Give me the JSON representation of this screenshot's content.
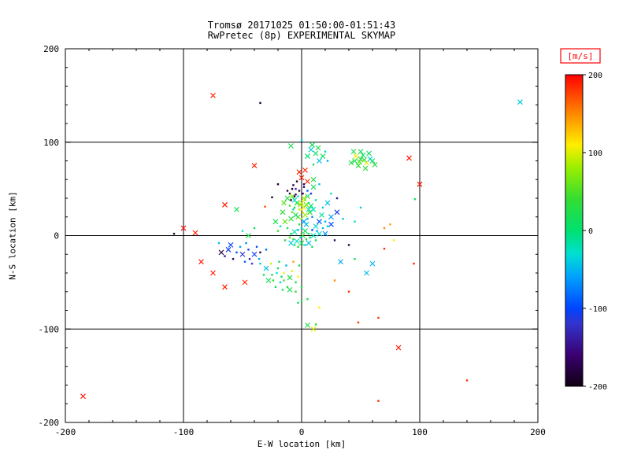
{
  "page": {
    "background": "#ffffff",
    "text_color": "#000000"
  },
  "chart_data": {
    "type": "scatter",
    "title": "Tromsø 20171025 01:50:00-01:51:43",
    "subtitle": "RwPretec (8p) EXPERIMENTAL SKYMAP",
    "xlabel": "E-W location [km]",
    "ylabel": "N-S location [km]",
    "xlim": [
      -200,
      200
    ],
    "ylim": [
      -200,
      200
    ],
    "x_ticks": [
      -200,
      -100,
      0,
      100,
      200
    ],
    "y_ticks": [
      -200,
      -100,
      0,
      100,
      200
    ],
    "grid_lines": [
      -100,
      0,
      100
    ],
    "grid_on": true,
    "legend_position": "right-colorbar",
    "colorbar": {
      "label": "[m/s]",
      "label_color": "#ff0000",
      "min": -200,
      "max": 200,
      "ticks": [
        200,
        100,
        0,
        -100,
        -200
      ],
      "stops": [
        [
          -200,
          "#100010"
        ],
        [
          -160,
          "#3a0070"
        ],
        [
          -120,
          "#3333cc"
        ],
        [
          -100,
          "#0044ff"
        ],
        [
          -60,
          "#00a0ff"
        ],
        [
          -30,
          "#00e0d0"
        ],
        [
          0,
          "#00e070"
        ],
        [
          40,
          "#33dd33"
        ],
        [
          80,
          "#99ee00"
        ],
        [
          110,
          "#ffee00"
        ],
        [
          150,
          "#ff8800"
        ],
        [
          200,
          "#ff0000"
        ]
      ]
    },
    "marker_types": {
      "0": "dot",
      "1": "x"
    },
    "points_format": [
      "x_km",
      "y_km",
      "velocity_m_s",
      "marker"
    ],
    "points": [
      [
        -75,
        150,
        190,
        1
      ],
      [
        -35,
        142,
        -185,
        0
      ],
      [
        185,
        143,
        -40,
        1
      ],
      [
        -185,
        -172,
        192,
        1
      ],
      [
        65,
        -177,
        188,
        0
      ],
      [
        140,
        -155,
        185,
        0
      ],
      [
        82,
        -120,
        190,
        1
      ],
      [
        65,
        -88,
        185,
        0
      ],
      [
        48,
        -93,
        180,
        0
      ],
      [
        91,
        83,
        190,
        1
      ],
      [
        100,
        55,
        190,
        1
      ],
      [
        -40,
        75,
        188,
        1
      ],
      [
        -100,
        8,
        195,
        1
      ],
      [
        -90,
        3,
        185,
        1
      ],
      [
        -108,
        2,
        -190,
        0
      ],
      [
        -65,
        33,
        190,
        1
      ],
      [
        -85,
        -28,
        190,
        1
      ],
      [
        -75,
        -40,
        190,
        1
      ],
      [
        -65,
        -55,
        188,
        1
      ],
      [
        -48,
        -50,
        185,
        1
      ],
      [
        95,
        -30,
        185,
        0
      ],
      [
        70,
        -14,
        182,
        0
      ],
      [
        -55,
        28,
        20,
        1
      ],
      [
        -45,
        0,
        22,
        1
      ],
      [
        -50,
        5,
        -30,
        0
      ],
      [
        -40,
        8,
        15,
        0
      ],
      [
        -70,
        -8,
        -45,
        0
      ],
      [
        -31,
        31,
        170,
        0
      ],
      [
        -25,
        41,
        -185,
        0
      ],
      [
        -20,
        55,
        -190,
        0
      ],
      [
        -62,
        -15,
        -110,
        1
      ],
      [
        -55,
        -18,
        -95,
        0
      ],
      [
        -50,
        -20,
        -120,
        1
      ],
      [
        -45,
        -15,
        -100,
        0
      ],
      [
        -58,
        -25,
        -170,
        0
      ],
      [
        -48,
        -28,
        -90,
        0
      ],
      [
        -40,
        -20,
        -105,
        1
      ],
      [
        -35,
        -18,
        -175,
        0
      ],
      [
        -30,
        -15,
        -85,
        0
      ],
      [
        -68,
        -18,
        -180,
        1
      ],
      [
        -52,
        -12,
        -60,
        0
      ],
      [
        -44,
        -25,
        -130,
        0
      ],
      [
        -38,
        -12,
        -95,
        0
      ],
      [
        -65,
        -22,
        -150,
        0
      ],
      [
        -60,
        -10,
        -100,
        1
      ],
      [
        -47,
        -8,
        -70,
        0
      ],
      [
        -42,
        -30,
        -115,
        0
      ],
      [
        -36,
        -25,
        -55,
        0
      ],
      [
        -20,
        -35,
        20,
        0
      ],
      [
        -15,
        -40,
        105,
        0
      ],
      [
        -10,
        -45,
        25,
        1
      ],
      [
        -5,
        -50,
        15,
        0
      ],
      [
        -18,
        -50,
        -40,
        0
      ],
      [
        -12,
        -55,
        30,
        0
      ],
      [
        -8,
        -38,
        100,
        0
      ],
      [
        -25,
        -42,
        20,
        0
      ],
      [
        -3,
        -44,
        110,
        0
      ],
      [
        0,
        -55,
        25,
        0
      ],
      [
        -30,
        -35,
        -45,
        1
      ],
      [
        -22,
        -55,
        18,
        0
      ],
      [
        -16,
        -58,
        28,
        0
      ],
      [
        -28,
        -48,
        22,
        1
      ],
      [
        -35,
        -30,
        -35,
        0
      ],
      [
        -32,
        -42,
        15,
        0
      ],
      [
        -26,
        -30,
        95,
        0
      ],
      [
        -19,
        -28,
        12,
        0
      ],
      [
        -13,
        -32,
        -50,
        0
      ],
      [
        -7,
        -28,
        140,
        0
      ],
      [
        -2,
        -32,
        20,
        0
      ],
      [
        -24,
        -48,
        35,
        0
      ],
      [
        -10,
        -58,
        20,
        1
      ],
      [
        -5,
        -60,
        30,
        0
      ],
      [
        -15,
        -48,
        50,
        0
      ],
      [
        -21,
        -40,
        -30,
        0
      ],
      [
        -17,
        -44,
        15,
        0
      ],
      [
        0,
        -70,
        20,
        0
      ],
      [
        5,
        -68,
        30,
        0
      ],
      [
        -3,
        -72,
        15,
        0
      ],
      [
        15,
        -77,
        110,
        0
      ],
      [
        10,
        -100,
        100,
        1
      ],
      [
        12,
        -95,
        30,
        0
      ],
      [
        5,
        -96,
        25,
        1
      ],
      [
        40,
        -60,
        180,
        0
      ],
      [
        28,
        -48,
        150,
        0
      ],
      [
        33,
        -28,
        -55,
        1
      ],
      [
        45,
        -25,
        15,
        0
      ],
      [
        55,
        -40,
        -45,
        1
      ],
      [
        60,
        -30,
        -50,
        1
      ],
      [
        96,
        39,
        10,
        0
      ],
      [
        75,
        12,
        140,
        0
      ],
      [
        78,
        -5,
        110,
        0
      ],
      [
        70,
        8,
        150,
        0
      ],
      [
        30,
        25,
        -110,
        1
      ],
      [
        25,
        12,
        -100,
        1
      ],
      [
        35,
        18,
        -40,
        0
      ],
      [
        28,
        -5,
        -170,
        0
      ],
      [
        40,
        -10,
        -180,
        0
      ],
      [
        25,
        45,
        -30,
        0
      ],
      [
        30,
        40,
        -150,
        0
      ],
      [
        22,
        35,
        -45,
        1
      ],
      [
        45,
        15,
        -25,
        0
      ],
      [
        50,
        30,
        -40,
        0
      ],
      [
        12,
        88,
        15,
        1
      ],
      [
        15,
        80,
        -45,
        1
      ],
      [
        10,
        76,
        20,
        0
      ],
      [
        18,
        85,
        10,
        1
      ],
      [
        8,
        92,
        -40,
        1
      ],
      [
        20,
        90,
        -30,
        0
      ],
      [
        5,
        85,
        0,
        1
      ],
      [
        14,
        94,
        25,
        1
      ],
      [
        22,
        80,
        -55,
        0
      ],
      [
        9,
        97,
        15,
        1
      ],
      [
        -9,
        96,
        20,
        1
      ],
      [
        0,
        102,
        -35,
        0
      ],
      [
        45,
        80,
        20,
        1
      ],
      [
        50,
        82,
        10,
        1
      ],
      [
        55,
        78,
        105,
        1
      ],
      [
        48,
        75,
        30,
        1
      ],
      [
        52,
        86,
        15,
        1
      ],
      [
        58,
        82,
        -40,
        1
      ],
      [
        42,
        78,
        25,
        1
      ],
      [
        50,
        90,
        18,
        1
      ],
      [
        60,
        80,
        12,
        1
      ],
      [
        46,
        85,
        108,
        1
      ],
      [
        54,
        72,
        35,
        1
      ],
      [
        44,
        90,
        22,
        1
      ],
      [
        57,
        88,
        8,
        1
      ],
      [
        62,
        76,
        28,
        1
      ],
      [
        49,
        79,
        60,
        1
      ],
      [
        53,
        81,
        45,
        1
      ],
      [
        0,
        62,
        190,
        1
      ],
      [
        3,
        70,
        185,
        1
      ],
      [
        -2,
        68,
        188,
        1
      ],
      [
        5,
        58,
        182,
        1
      ],
      [
        -4,
        58,
        -185,
        0
      ],
      [
        -7,
        54,
        -175,
        0
      ],
      [
        2,
        52,
        -160,
        0
      ],
      [
        -2,
        48,
        -180,
        0
      ],
      [
        1,
        45,
        -170,
        0
      ],
      [
        -5,
        44,
        -150,
        0
      ],
      [
        -8,
        50,
        -190,
        0
      ],
      [
        -10,
        45,
        -185,
        0
      ],
      [
        -6,
        42,
        -180,
        0
      ],
      [
        -12,
        48,
        -175,
        0
      ],
      [
        -9,
        38,
        -190,
        0
      ],
      [
        10,
        60,
        25,
        1
      ],
      [
        15,
        55,
        -40,
        0
      ],
      [
        0,
        35,
        100,
        1
      ],
      [
        2,
        30,
        110,
        1
      ],
      [
        -2,
        28,
        90,
        0
      ],
      [
        4,
        33,
        60,
        1
      ],
      [
        -4,
        35,
        30,
        1
      ],
      [
        6,
        28,
        -30,
        1
      ],
      [
        -6,
        30,
        20,
        0
      ],
      [
        1,
        25,
        105,
        0
      ],
      [
        3,
        22,
        80,
        1
      ],
      [
        -3,
        20,
        50,
        1
      ],
      [
        5,
        18,
        -45,
        0
      ],
      [
        -5,
        22,
        15,
        1
      ],
      [
        0,
        18,
        95,
        0
      ],
      [
        2,
        15,
        -60,
        1
      ],
      [
        -2,
        12,
        25,
        0
      ],
      [
        7,
        25,
        40,
        1
      ],
      [
        -7,
        28,
        -35,
        0
      ],
      [
        8,
        32,
        10,
        1
      ],
      [
        -8,
        25,
        65,
        0
      ],
      [
        4,
        12,
        -50,
        1
      ],
      [
        0,
        28,
        120,
        0
      ],
      [
        -1,
        33,
        75,
        1
      ],
      [
        6,
        35,
        20,
        0
      ],
      [
        -6,
        38,
        -25,
        1
      ],
      [
        3,
        38,
        55,
        0
      ],
      [
        9,
        20,
        -70,
        0
      ],
      [
        -9,
        18,
        30,
        1
      ],
      [
        10,
        28,
        -20,
        1
      ],
      [
        -10,
        32,
        45,
        0
      ],
      [
        2,
        40,
        85,
        1
      ],
      [
        -3,
        42,
        -30,
        0
      ],
      [
        5,
        42,
        25,
        1
      ],
      [
        0,
        8,
        -40,
        0
      ],
      [
        3,
        5,
        15,
        1
      ],
      [
        -3,
        6,
        -55,
        0
      ],
      [
        6,
        2,
        30,
        0
      ],
      [
        -6,
        4,
        -20,
        1
      ],
      [
        9,
        6,
        -100,
        0
      ],
      [
        -9,
        2,
        10,
        0
      ],
      [
        12,
        10,
        -35,
        1
      ],
      [
        -12,
        8,
        20,
        0
      ],
      [
        1,
        0,
        40,
        1
      ],
      [
        -1,
        -2,
        -45,
        0
      ],
      [
        4,
        -4,
        25,
        0
      ],
      [
        -4,
        -6,
        -30,
        1
      ],
      [
        7,
        -2,
        15,
        0
      ],
      [
        -7,
        -4,
        35,
        0
      ],
      [
        10,
        0,
        -25,
        1
      ],
      [
        -10,
        -2,
        50,
        0
      ],
      [
        13,
        5,
        -60,
        0
      ],
      [
        0,
        -8,
        20,
        1
      ],
      [
        3,
        -10,
        -35,
        0
      ],
      [
        -3,
        -12,
        30,
        0
      ],
      [
        6,
        -8,
        -50,
        1
      ],
      [
        -6,
        -10,
        15,
        0
      ],
      [
        9,
        -12,
        25,
        0
      ],
      [
        -9,
        -8,
        -40,
        1
      ],
      [
        12,
        -5,
        10,
        0
      ],
      [
        15,
        2,
        -30,
        1
      ],
      [
        15,
        15,
        -90,
        1
      ],
      [
        18,
        8,
        -45,
        0
      ],
      [
        -14,
        15,
        60,
        1
      ],
      [
        -14,
        -5,
        25,
        0
      ],
      [
        17,
        22,
        -15,
        1
      ],
      [
        20,
        15,
        -55,
        0
      ],
      [
        -16,
        25,
        35,
        1
      ],
      [
        -18,
        10,
        -25,
        0
      ],
      [
        20,
        2,
        -70,
        1
      ],
      [
        -20,
        5,
        40,
        0
      ],
      [
        22,
        10,
        -35,
        0
      ],
      [
        -22,
        15,
        20,
        1
      ],
      [
        25,
        20,
        -60,
        1
      ],
      [
        18,
        30,
        -40,
        0
      ],
      [
        -15,
        35,
        55,
        1
      ],
      [
        12,
        38,
        -20,
        0
      ],
      [
        -12,
        40,
        30,
        1
      ],
      [
        8,
        45,
        -110,
        0
      ],
      [
        -8,
        42,
        70,
        1
      ],
      [
        5,
        48,
        -90,
        0
      ],
      [
        -5,
        50,
        -130,
        0
      ],
      [
        2,
        55,
        -170,
        0
      ],
      [
        10,
        52,
        15,
        1
      ]
    ]
  }
}
